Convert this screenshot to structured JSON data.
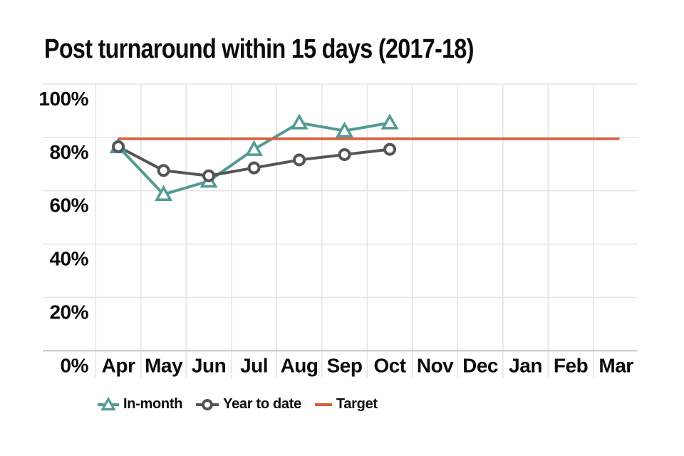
{
  "page": {
    "background": "#ffffff"
  },
  "chart_data": {
    "type": "line",
    "title": "Post turnaround within 15 days (2017-18)",
    "x_categories": [
      "Apr",
      "May",
      "Jun",
      "Jul",
      "Aug",
      "Sep",
      "Oct",
      "Nov",
      "Dec",
      "Jan",
      "Feb",
      "Mar"
    ],
    "y_axis": {
      "tick_labels": [
        "0%",
        "20%",
        "40%",
        "60%",
        "80%",
        "100%"
      ],
      "tick_values": [
        0,
        20,
        40,
        60,
        80,
        100
      ],
      "ylim": [
        0,
        100
      ]
    },
    "grid": true,
    "legend_position": "bottom",
    "series": [
      {
        "name": "In-month",
        "marker": "triangle",
        "color": "#529a95",
        "x": [
          "Apr",
          "May",
          "Jun",
          "Jul",
          "Aug",
          "Sep",
          "Oct"
        ],
        "values": [
          82,
          64,
          69,
          81,
          91,
          88,
          91
        ]
      },
      {
        "name": "Year to date",
        "marker": "circle",
        "color": "#555555",
        "x": [
          "Apr",
          "May",
          "Jun",
          "Jul",
          "Aug",
          "Sep",
          "Oct"
        ],
        "values": [
          82,
          73,
          71,
          74,
          77,
          79,
          81
        ]
      }
    ],
    "target_line": {
      "name": "Target",
      "value": 85,
      "color": "#e05b38",
      "x_span": [
        "Apr",
        "Mar"
      ]
    },
    "colors": {
      "text": "#0b0c0c",
      "gridline": "#e4e4e4",
      "axis_line": "#c6c6c6",
      "marker_fill": "#ffffff"
    }
  },
  "legend": {
    "items": [
      {
        "label": "In-month",
        "swatch": "line-triangle",
        "color": "#529a95"
      },
      {
        "label": "Year to date",
        "swatch": "line-circle",
        "color": "#555555"
      },
      {
        "label": "Target",
        "swatch": "line",
        "color": "#e05b38"
      }
    ]
  }
}
